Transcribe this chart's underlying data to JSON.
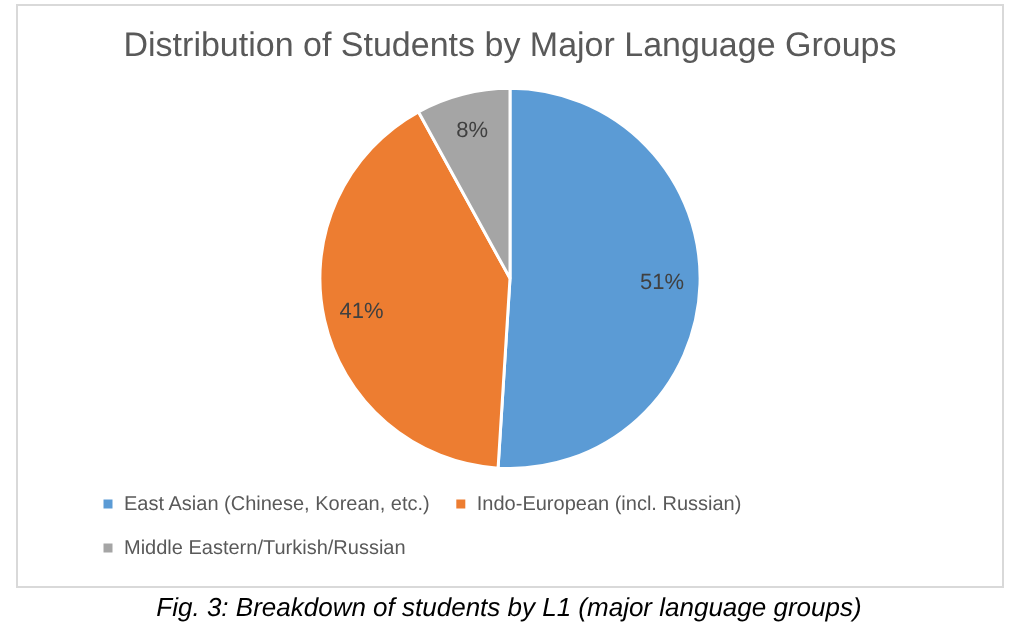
{
  "chart_data": {
    "type": "pie",
    "title": "Distribution of Students by Major Language Groups",
    "categories": [
      "East Asian (Chinese, Korean, etc.)",
      "Indo-European (incl. Russian)",
      "Middle Eastern/Turkish/Russian"
    ],
    "values": [
      51,
      41,
      8
    ],
    "colors": [
      "#5b9bd5",
      "#ed7d31",
      "#a5a5a5"
    ],
    "value_labels": [
      "51%",
      "41%",
      "8%"
    ],
    "legend": "bottom",
    "annotations": [
      "Fig. 3: Breakdown of students by L1 (major language groups)"
    ]
  }
}
